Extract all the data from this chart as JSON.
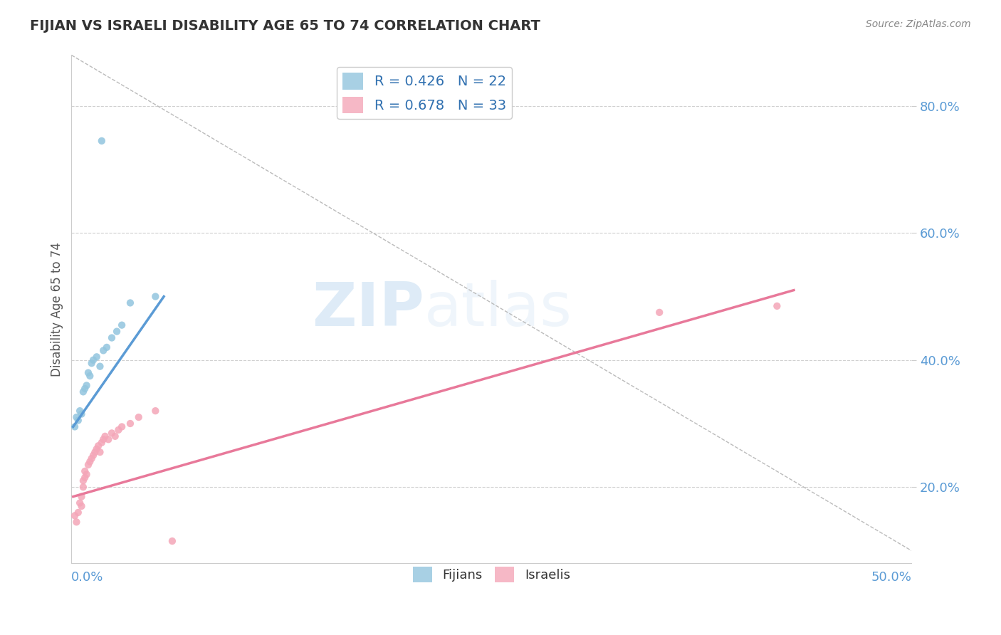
{
  "title": "FIJIAN VS ISRAELI DISABILITY AGE 65 TO 74 CORRELATION CHART",
  "source": "Source: ZipAtlas.com",
  "ylabel": "Disability Age 65 to 74",
  "xlim": [
    0.0,
    0.5
  ],
  "ylim": [
    0.08,
    0.88
  ],
  "yticks": [
    0.2,
    0.4,
    0.6,
    0.8
  ],
  "ytick_labels": [
    "20.0%",
    "40.0%",
    "60.0%",
    "80.0%"
  ],
  "fijian_color": "#92c5de",
  "israeli_color": "#f4a6b8",
  "fijian_R": 0.426,
  "fijian_N": 22,
  "israeli_R": 0.678,
  "israeli_N": 33,
  "legend_label_fijian": "Fijians",
  "legend_label_israeli": "Israelis",
  "fijians_x": [
    0.002,
    0.003,
    0.004,
    0.005,
    0.006,
    0.007,
    0.008,
    0.009,
    0.01,
    0.011,
    0.012,
    0.013,
    0.015,
    0.017,
    0.019,
    0.021,
    0.024,
    0.027,
    0.03,
    0.035,
    0.05,
    0.018
  ],
  "fijians_y": [
    0.295,
    0.31,
    0.305,
    0.32,
    0.315,
    0.35,
    0.355,
    0.36,
    0.38,
    0.375,
    0.395,
    0.4,
    0.405,
    0.39,
    0.415,
    0.42,
    0.435,
    0.445,
    0.455,
    0.49,
    0.5,
    0.745
  ],
  "israelis_x": [
    0.002,
    0.003,
    0.004,
    0.005,
    0.006,
    0.006,
    0.007,
    0.007,
    0.008,
    0.008,
    0.009,
    0.01,
    0.011,
    0.012,
    0.013,
    0.014,
    0.015,
    0.016,
    0.017,
    0.018,
    0.019,
    0.02,
    0.022,
    0.024,
    0.026,
    0.028,
    0.03,
    0.035,
    0.04,
    0.05,
    0.06,
    0.35,
    0.42
  ],
  "israelis_y": [
    0.155,
    0.145,
    0.16,
    0.175,
    0.17,
    0.185,
    0.2,
    0.21,
    0.215,
    0.225,
    0.22,
    0.235,
    0.24,
    0.245,
    0.25,
    0.255,
    0.26,
    0.265,
    0.255,
    0.27,
    0.275,
    0.28,
    0.275,
    0.285,
    0.28,
    0.29,
    0.295,
    0.3,
    0.31,
    0.32,
    0.115,
    0.475,
    0.485
  ],
  "bg_color": "#ffffff",
  "grid_color": "#d0d0d0",
  "watermark_zip": "ZIP",
  "watermark_atlas": "atlas",
  "fijian_line_color": "#5b9bd5",
  "israeli_line_color": "#e8799a",
  "diag_line_color": "#bbbbbb",
  "fijian_line_x": [
    0.001,
    0.055
  ],
  "fijian_line_y": [
    0.295,
    0.5
  ],
  "israeli_line_x": [
    0.001,
    0.43
  ],
  "israeli_line_y": [
    0.185,
    0.51
  ]
}
